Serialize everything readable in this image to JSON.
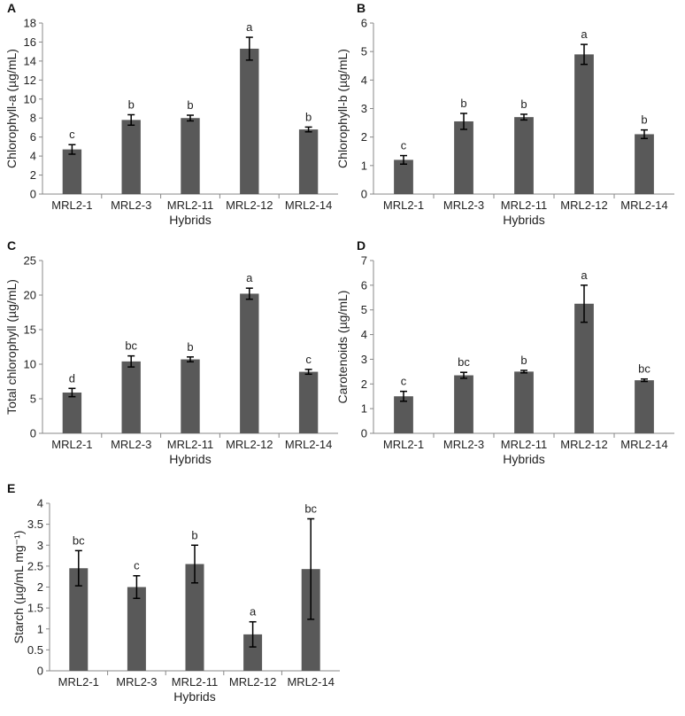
{
  "style": {
    "bar_color": "#595959",
    "axis_color": "#888888",
    "error_color": "#000000",
    "text_color": "#222222"
  },
  "chart_data": [
    {
      "panel": "A",
      "type": "bar",
      "categories": [
        "MRL2-1",
        "MRL2-3",
        "MRL2-11",
        "MRL2-12",
        "MRL2-14"
      ],
      "values": [
        4.7,
        7.8,
        8.0,
        15.3,
        6.8
      ],
      "errors": [
        0.5,
        0.55,
        0.3,
        1.2,
        0.25
      ],
      "letters": [
        "c",
        "b",
        "b",
        "a",
        "b"
      ],
      "ylabel": "Chlorophyll-a  (µg/mL)",
      "xlabel": "Hybrids",
      "ylim": [
        0,
        18
      ],
      "yticks": [
        "0",
        "2",
        "4",
        "6",
        "8",
        "10",
        "12",
        "14",
        "16",
        "18"
      ],
      "grid": false
    },
    {
      "panel": "B",
      "type": "bar",
      "categories": [
        "MRL2-1",
        "MRL2-3",
        "MRL2-11",
        "MRL2-12",
        "MRL2-14"
      ],
      "values": [
        1.2,
        2.55,
        2.7,
        4.9,
        2.1
      ],
      "errors": [
        0.15,
        0.28,
        0.1,
        0.35,
        0.15
      ],
      "letters": [
        "c",
        "b",
        "b",
        "a",
        "b"
      ],
      "ylabel": "Chlorophyll-b  (µg/mL)",
      "xlabel": "Hybrids",
      "ylim": [
        0,
        6
      ],
      "yticks": [
        "0",
        "1",
        "2",
        "3",
        "4",
        "5",
        "6"
      ],
      "grid": false
    },
    {
      "panel": "C",
      "type": "bar",
      "categories": [
        "MRL2-1",
        "MRL2-3",
        "MRL2-11",
        "MRL2-12",
        "MRL2-14"
      ],
      "values": [
        5.9,
        10.4,
        10.7,
        20.2,
        8.9
      ],
      "errors": [
        0.6,
        0.8,
        0.35,
        0.8,
        0.35
      ],
      "letters": [
        "d",
        "bc",
        "b",
        "a",
        "c"
      ],
      "ylabel": "Total chlorophyll  (µg/mL)",
      "xlabel": "Hybrids",
      "ylim": [
        0,
        25
      ],
      "yticks": [
        "0",
        "5",
        "10",
        "15",
        "20",
        "25"
      ],
      "grid": false
    },
    {
      "panel": "D",
      "type": "bar",
      "categories": [
        "MRL2-1",
        "MRL2-3",
        "MRL2-11",
        "MRL2-12",
        "MRL2-14"
      ],
      "values": [
        1.5,
        2.35,
        2.5,
        5.25,
        2.15
      ],
      "errors": [
        0.2,
        0.12,
        0.05,
        0.75,
        0.05
      ],
      "letters": [
        "c",
        "bc",
        "b",
        "a",
        "bc"
      ],
      "ylabel": "Carotenoids  (µg/mL)",
      "xlabel": "Hybrids",
      "ylim": [
        0,
        7
      ],
      "yticks": [
        "0",
        "1",
        "2",
        "3",
        "4",
        "5",
        "6",
        "7"
      ],
      "grid": false
    },
    {
      "panel": "E",
      "type": "bar",
      "categories": [
        "MRL2-1",
        "MRL2-3",
        "MRL2-11",
        "MRL2-12",
        "MRL2-14"
      ],
      "values": [
        2.45,
        2.0,
        2.55,
        0.87,
        2.43
      ],
      "errors": [
        0.42,
        0.27,
        0.45,
        0.3,
        1.2
      ],
      "letters": [
        "bc",
        "c",
        "b",
        "a",
        "bc"
      ],
      "ylabel": "Starch  (µg/mL  mg⁻¹)",
      "xlabel": "Hybrids",
      "ylim": [
        0,
        4
      ],
      "yticks": [
        "0",
        "0.5",
        "1",
        "1.5",
        "2",
        "2.5",
        "3",
        "3.5",
        "4"
      ],
      "grid": false
    }
  ]
}
